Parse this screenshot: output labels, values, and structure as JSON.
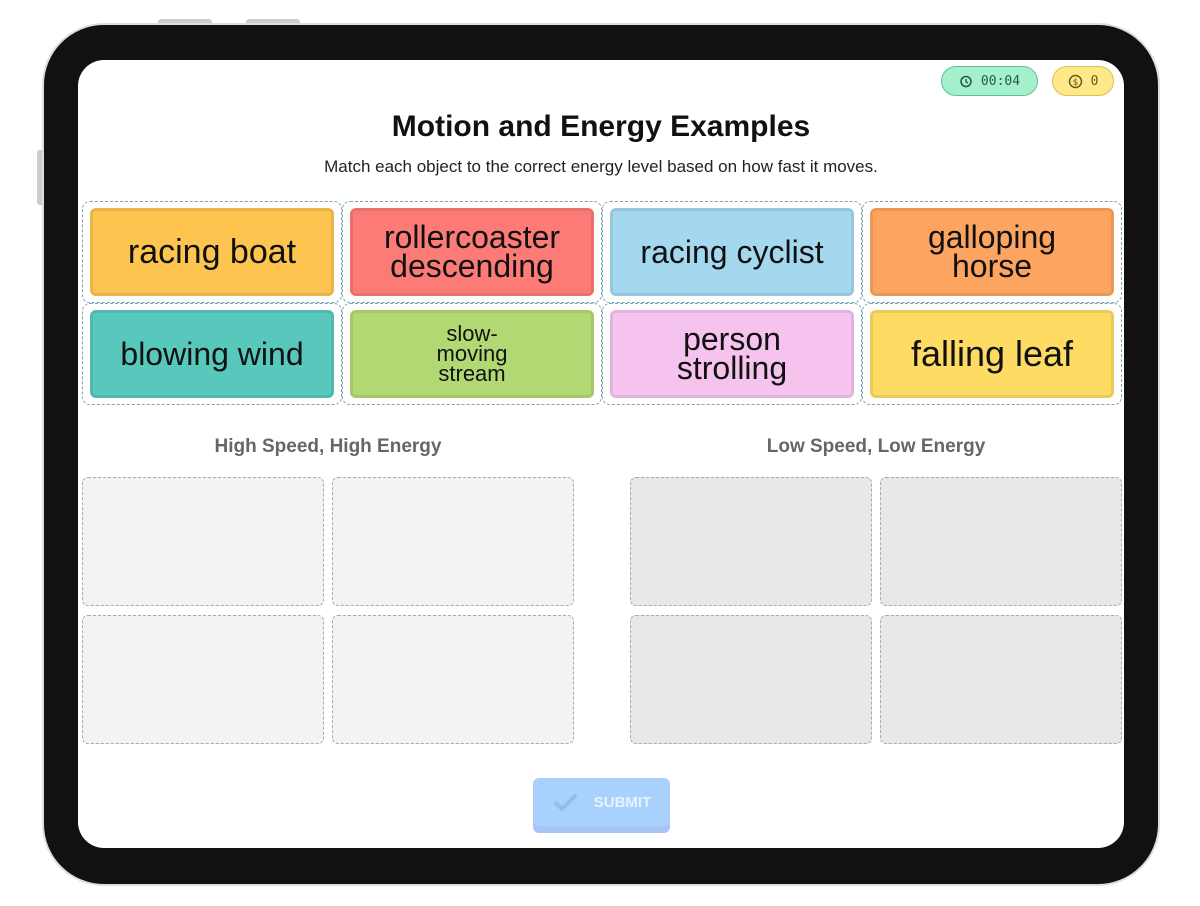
{
  "status": {
    "timer": "00:04",
    "coins": "0"
  },
  "header": {
    "title": "Motion and Energy Examples",
    "subtitle": "Match each object to the correct energy level based on how fast it moves."
  },
  "cards": [
    {
      "label": "racing boat",
      "color": "#fdc54f"
    },
    {
      "label": "rollercoaster descending",
      "color": "#fd7b77"
    },
    {
      "label": "racing cyclist",
      "color": "#a3d8ef"
    },
    {
      "label": "galloping horse",
      "color": "#fda560"
    },
    {
      "label": "blowing wind",
      "color": "#58c8bd"
    },
    {
      "label": "slow-moving stream",
      "color": "#b1d872"
    },
    {
      "label": "person strolling",
      "color": "#f6c3ef"
    },
    {
      "label": "falling leaf",
      "color": "#fedc64"
    }
  ],
  "categories": [
    {
      "title": "High Speed, High Energy"
    },
    {
      "title": "Low Speed, Low Energy"
    }
  ],
  "submit": {
    "label": "SUBMIT"
  }
}
